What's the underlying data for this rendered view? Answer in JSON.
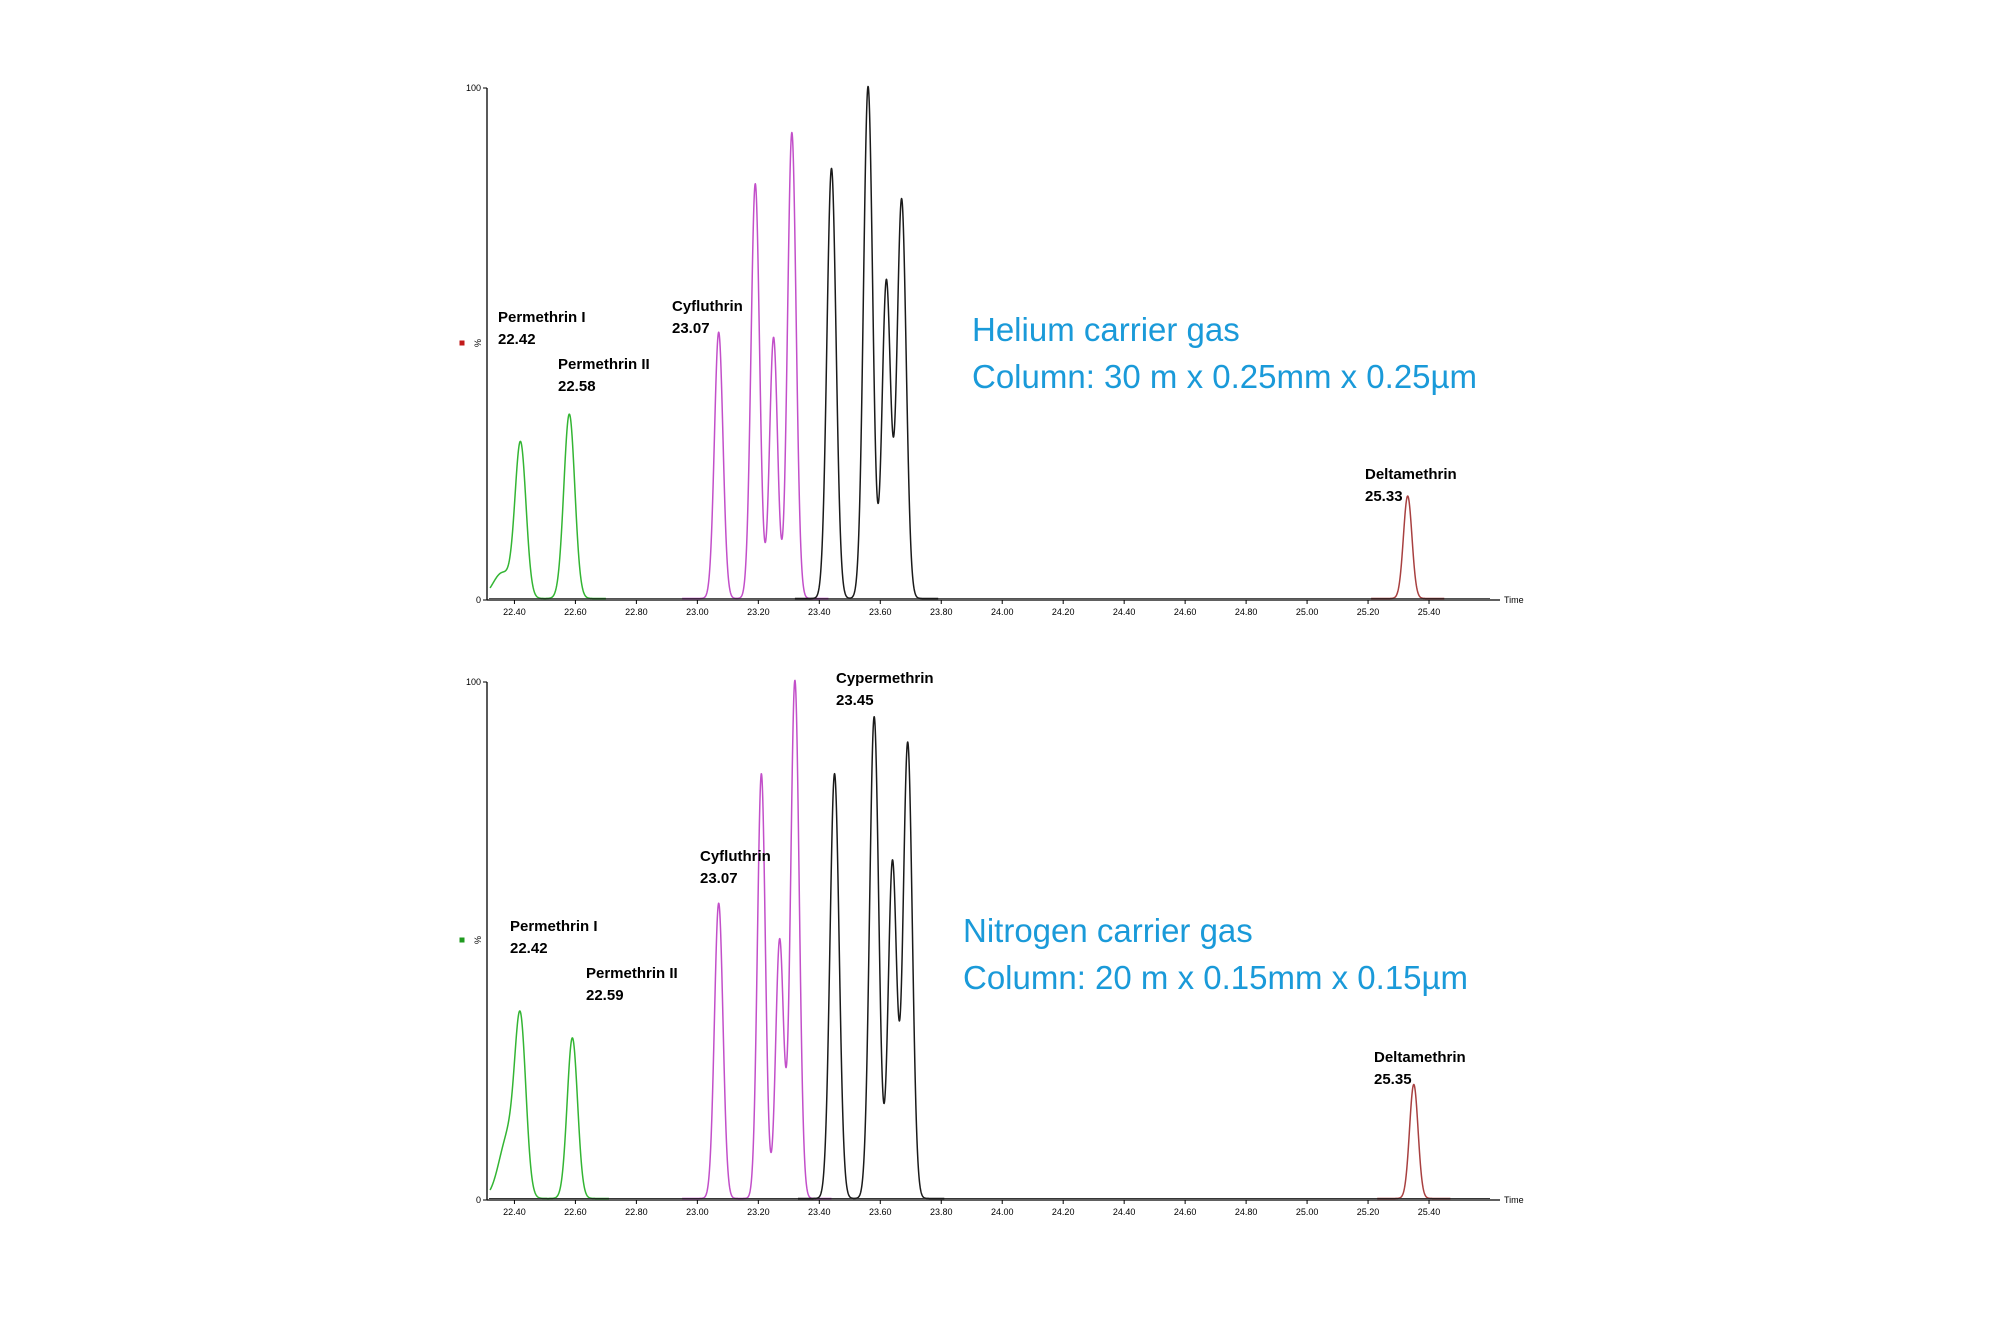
{
  "colors": {
    "green": "#33b533",
    "magenta": "#c24fc9",
    "black": "#1a1a1a",
    "red": "#a84040",
    "accent": "#1a9ad9"
  },
  "chart_data": [
    {
      "type": "line",
      "x_axis_label": "Time",
      "y_axis_label": "%",
      "y_tick_labels": [
        "0",
        "100"
      ],
      "x_ticks": [
        22.4,
        22.6,
        22.8,
        23.0,
        23.2,
        23.4,
        23.6,
        23.8,
        24.0,
        24.2,
        24.4,
        24.6,
        24.8,
        25.0,
        25.2,
        25.4
      ],
      "x_tick_labels": [
        "22.40",
        "22.60",
        "22.80",
        "23.00",
        "23.20",
        "23.40",
        "23.60",
        "23.80",
        "24.00",
        "24.20",
        "24.40",
        "24.60",
        "24.80",
        "25.00",
        "25.20",
        "25.40"
      ],
      "xlim": [
        22.31,
        25.6
      ],
      "ylim": [
        0,
        100
      ],
      "legend_marker_color": "#c21a1a",
      "condition_lines": [
        "Helium carrier gas",
        "Column: 30 m x 0.25mm x 0.25µm"
      ],
      "series": [
        {
          "color": "#33b533",
          "peaks": [
            {
              "x": 22.36,
              "h": 5,
              "w": 0.03
            },
            {
              "x": 22.42,
              "h": 30,
              "w": 0.018
            },
            {
              "x": 22.58,
              "h": 36,
              "w": 0.018
            }
          ]
        },
        {
          "color": "#c24fc9",
          "peaks": [
            {
              "x": 23.07,
              "h": 52,
              "w": 0.014
            },
            {
              "x": 23.19,
              "h": 81,
              "w": 0.014
            },
            {
              "x": 23.25,
              "h": 51,
              "w": 0.013
            },
            {
              "x": 23.31,
              "h": 91,
              "w": 0.014
            }
          ]
        },
        {
          "color": "#1a1a1a",
          "peaks": [
            {
              "x": 23.44,
              "h": 84,
              "w": 0.015
            },
            {
              "x": 23.56,
              "h": 100,
              "w": 0.015
            },
            {
              "x": 23.62,
              "h": 62,
              "w": 0.014
            },
            {
              "x": 23.67,
              "h": 78,
              "w": 0.015
            }
          ]
        },
        {
          "color": "#a84040",
          "peaks": [
            {
              "x": 25.33,
              "h": 20,
              "w": 0.014
            }
          ]
        }
      ],
      "annotations": [
        {
          "lines": [
            "Permethrin I",
            "22.42"
          ]
        },
        {
          "lines": [
            "Permethrin II",
            "22.58"
          ]
        },
        {
          "lines": [
            "Cyfluthrin",
            "23.07"
          ]
        },
        {
          "lines": [
            "Deltamethrin",
            "25.33"
          ]
        }
      ]
    },
    {
      "type": "line",
      "x_axis_label": "Time",
      "y_axis_label": "%",
      "y_tick_labels": [
        "0",
        "100"
      ],
      "x_ticks": [
        22.4,
        22.6,
        22.8,
        23.0,
        23.2,
        23.4,
        23.6,
        23.8,
        24.0,
        24.2,
        24.4,
        24.6,
        24.8,
        25.0,
        25.2,
        25.4
      ],
      "x_tick_labels": [
        "22.40",
        "22.60",
        "22.80",
        "23.00",
        "23.20",
        "23.40",
        "23.60",
        "23.80",
        "24.00",
        "24.20",
        "24.40",
        "24.60",
        "24.80",
        "25.00",
        "25.20",
        "25.40"
      ],
      "xlim": [
        22.31,
        25.6
      ],
      "ylim": [
        0,
        100
      ],
      "legend_marker_color": "#1f9a1f",
      "condition_lines": [
        "Nitrogen carrier gas",
        "Column: 20 m x 0.15mm x 0.15µm"
      ],
      "series": [
        {
          "color": "#33b533",
          "peaks": [
            {
              "x": 22.38,
              "h": 12,
              "w": 0.03
            },
            {
              "x": 22.42,
              "h": 31,
              "w": 0.018
            },
            {
              "x": 22.59,
              "h": 31,
              "w": 0.017
            }
          ]
        },
        {
          "color": "#c24fc9",
          "peaks": [
            {
              "x": 23.07,
              "h": 57,
              "w": 0.014
            },
            {
              "x": 23.21,
              "h": 82,
              "w": 0.013
            },
            {
              "x": 23.27,
              "h": 50,
              "w": 0.013
            },
            {
              "x": 23.32,
              "h": 100,
              "w": 0.014
            }
          ]
        },
        {
          "color": "#1a1a1a",
          "peaks": [
            {
              "x": 23.45,
              "h": 82,
              "w": 0.015
            },
            {
              "x": 23.58,
              "h": 93,
              "w": 0.015
            },
            {
              "x": 23.64,
              "h": 65,
              "w": 0.014
            },
            {
              "x": 23.69,
              "h": 88,
              "w": 0.015
            }
          ]
        },
        {
          "color": "#a84040",
          "peaks": [
            {
              "x": 25.35,
              "h": 22,
              "w": 0.014
            }
          ]
        }
      ],
      "annotations": [
        {
          "lines": [
            "Permethrin I",
            "22.42"
          ]
        },
        {
          "lines": [
            "Permethrin II",
            "22.59"
          ]
        },
        {
          "lines": [
            "Cyfluthrin",
            "23.07"
          ]
        },
        {
          "lines": [
            "Cypermethrin",
            "23.45"
          ]
        },
        {
          "lines": [
            "Deltamethrin",
            "25.35"
          ]
        }
      ]
    }
  ]
}
